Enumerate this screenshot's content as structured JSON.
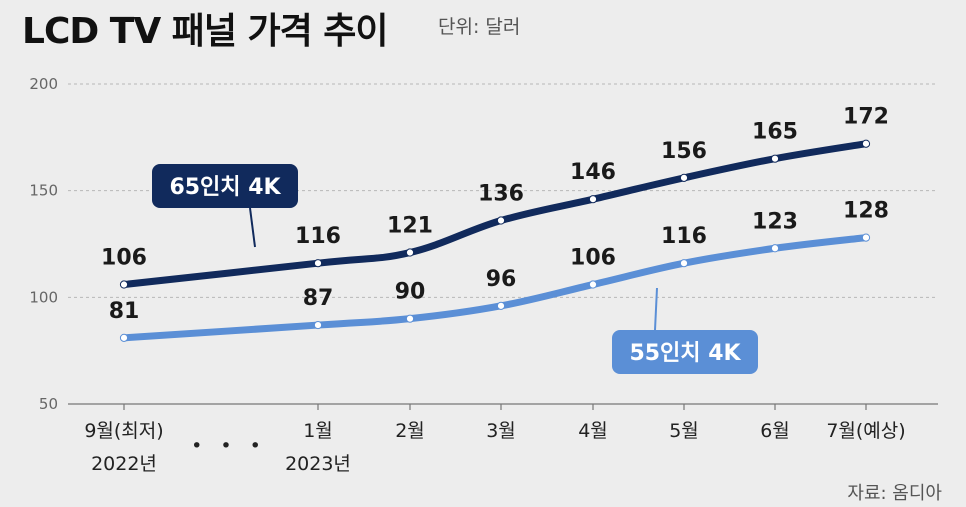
{
  "title": "LCD TV 패널 가격 추이",
  "unit": "단위: 달러",
  "source": "자료: 옴디아",
  "colors": {
    "dark": "#112a5c",
    "light": "#5b8fd6",
    "grid": "#b8b8b8",
    "background": "#ededed"
  },
  "chart_data": {
    "type": "line",
    "title": "LCD TV 패널 가격 추이",
    "xlabel": "",
    "ylabel": "단위: 달러",
    "ylim": [
      50,
      200
    ],
    "yticks": [
      "50",
      "100",
      "150",
      "200"
    ],
    "grid": true,
    "categories": [
      "9월(최저)",
      "1월",
      "2월",
      "3월",
      "4월",
      "5월",
      "6월",
      "7월(예상)"
    ],
    "category_sublabels": [
      "2022년",
      "2023년",
      "",
      "",
      "",
      "",
      "",
      ""
    ],
    "axis_gap_marker": "• • •",
    "series": [
      {
        "name": "65인치 4K",
        "color": "#112a5c",
        "values": [
          106,
          116,
          121,
          136,
          146,
          156,
          165,
          172
        ]
      },
      {
        "name": "55인치 4K",
        "color": "#5b8fd6",
        "values": [
          81,
          87,
          90,
          96,
          106,
          116,
          123,
          128
        ]
      }
    ]
  }
}
